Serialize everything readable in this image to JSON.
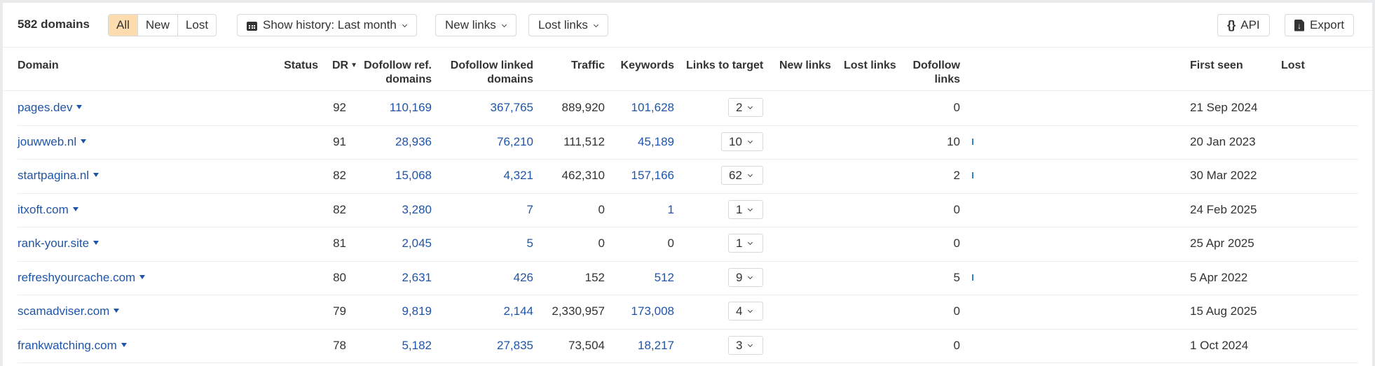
{
  "toolbar": {
    "count_label": "582 domains",
    "filter_segments": [
      {
        "label": "All",
        "active": true
      },
      {
        "label": "New",
        "active": false
      },
      {
        "label": "Lost",
        "active": false
      }
    ],
    "history_button": {
      "icon": "calendar-icon",
      "label": "Show history: Last month"
    },
    "new_links_button": {
      "label": "New links"
    },
    "lost_links_button": {
      "label": "Lost links"
    },
    "api_button": {
      "icon": "braces-icon",
      "icon_glyph": "{}",
      "label": "API"
    },
    "export_button": {
      "icon": "export-file-icon",
      "label": "Export"
    }
  },
  "table": {
    "columns": {
      "domain": "Domain",
      "status": "Status",
      "dr": "DR",
      "dofollow_ref_domains_1": "Dofollow ref.",
      "dofollow_ref_domains_2": "domains",
      "dofollow_linked_domains_1": "Dofollow linked",
      "dofollow_linked_domains_2": "domains",
      "traffic": "Traffic",
      "keywords": "Keywords",
      "links_to_target": "Links to target",
      "new_links": "New links",
      "lost_links": "Lost links",
      "dofollow_links_1": "Dofollow",
      "dofollow_links_2": "links",
      "first_seen": "First seen",
      "lost": "Lost"
    },
    "sort": {
      "column": "DR",
      "direction": "desc",
      "icon": "sort-desc-icon",
      "glyph": "▼"
    },
    "rows": [
      {
        "domain": "pages.dev",
        "status": "",
        "dr": "92",
        "dofollow_ref_domains": "110,169",
        "dofollow_linked_domains": "367,765",
        "traffic": "889,920",
        "keywords": "101,628",
        "links_to_target": "2",
        "new_links": "",
        "lost_links": "",
        "dofollow_links": "0",
        "sparkline": false,
        "first_seen": "21 Sep 2024",
        "lost": ""
      },
      {
        "domain": "jouwweb.nl",
        "status": "",
        "dr": "91",
        "dofollow_ref_domains": "28,936",
        "dofollow_linked_domains": "76,210",
        "traffic": "111,512",
        "keywords": "45,189",
        "links_to_target": "10",
        "new_links": "",
        "lost_links": "",
        "dofollow_links": "10",
        "sparkline": true,
        "first_seen": "20 Jan 2023",
        "lost": ""
      },
      {
        "domain": "startpagina.nl",
        "status": "",
        "dr": "82",
        "dofollow_ref_domains": "15,068",
        "dofollow_linked_domains": "4,321",
        "traffic": "462,310",
        "keywords": "157,166",
        "links_to_target": "62",
        "new_links": "",
        "lost_links": "",
        "dofollow_links": "2",
        "sparkline": true,
        "first_seen": "30 Mar 2022",
        "lost": ""
      },
      {
        "domain": "itxoft.com",
        "status": "",
        "dr": "82",
        "dofollow_ref_domains": "3,280",
        "dofollow_linked_domains": "7",
        "traffic": "0",
        "keywords": "1",
        "links_to_target": "1",
        "new_links": "",
        "lost_links": "",
        "dofollow_links": "0",
        "sparkline": false,
        "first_seen": "24 Feb 2025",
        "lost": ""
      },
      {
        "domain": "rank-your.site",
        "status": "",
        "dr": "81",
        "dofollow_ref_domains": "2,045",
        "dofollow_linked_domains": "5",
        "traffic": "0",
        "keywords": "0",
        "links_to_target": "1",
        "new_links": "",
        "lost_links": "",
        "dofollow_links": "0",
        "sparkline": false,
        "first_seen": "25 Apr 2025",
        "lost": ""
      },
      {
        "domain": "refreshyourcache.com",
        "status": "",
        "dr": "80",
        "dofollow_ref_domains": "2,631",
        "dofollow_linked_domains": "426",
        "traffic": "152",
        "keywords": "512",
        "links_to_target": "9",
        "new_links": "",
        "lost_links": "",
        "dofollow_links": "5",
        "sparkline": true,
        "first_seen": "5 Apr 2022",
        "lost": ""
      },
      {
        "domain": "scamadviser.com",
        "status": "",
        "dr": "79",
        "dofollow_ref_domains": "9,819",
        "dofollow_linked_domains": "2,144",
        "traffic": "2,330,957",
        "keywords": "173,008",
        "links_to_target": "4",
        "new_links": "",
        "lost_links": "",
        "dofollow_links": "0",
        "sparkline": false,
        "first_seen": "15 Aug 2025",
        "lost": ""
      },
      {
        "domain": "frankwatching.com",
        "status": "",
        "dr": "78",
        "dofollow_ref_domains": "5,182",
        "dofollow_linked_domains": "27,835",
        "traffic": "73,504",
        "keywords": "18,217",
        "links_to_target": "3",
        "new_links": "",
        "lost_links": "",
        "dofollow_links": "0",
        "sparkline": false,
        "first_seen": "1 Oct 2024",
        "lost": ""
      }
    ],
    "keywords_zero_is_plain": true
  },
  "colors": {
    "link": "#1f55a8",
    "active_segment": "#fddcb0",
    "sparkline": "#2f84c9",
    "border": "#d6d8dc",
    "page_background": "#e9eaec"
  }
}
